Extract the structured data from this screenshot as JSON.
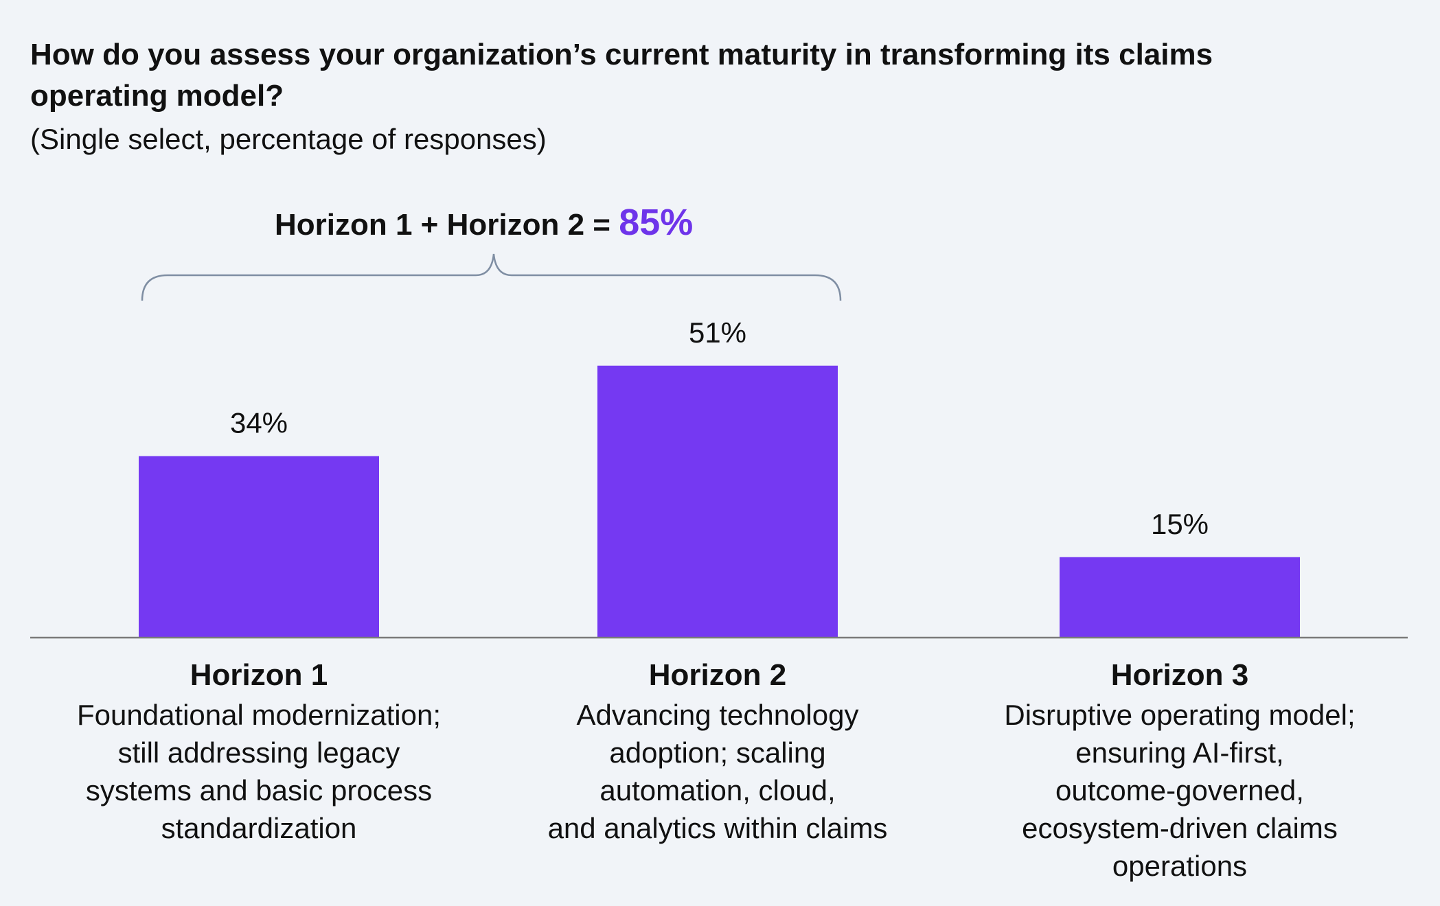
{
  "header": {
    "title": "How do you assess your organization’s current maturity in transforming its claims operating model?",
    "subtitle": "(Single select, percentage of responses)"
  },
  "summary": {
    "label": "Horizon 1 + Horizon 2 =",
    "value": "85%"
  },
  "categories": [
    {
      "title": "Horizon 1",
      "desc_lines": [
        "Foundational modernization;",
        "still addressing legacy",
        "systems and basic process",
        "standardization"
      ]
    },
    {
      "title": "Horizon 2",
      "desc_lines": [
        "Advancing technology",
        "adoption; scaling",
        "automation, cloud,",
        "and analytics within claims"
      ]
    },
    {
      "title": "Horizon 3",
      "desc_lines": [
        "Disruptive operating model;",
        "ensuring AI-first,",
        "outcome-governed,",
        "ecosystem-driven claims",
        "operations"
      ]
    }
  ],
  "colors": {
    "bar": "#7539f2",
    "accent": "#6e34ea",
    "axis": "#7a7a7a",
    "brace": "#7f8ea3",
    "background": "#f1f4f8"
  },
  "chart_data": {
    "type": "bar",
    "categories": [
      "Horizon 1",
      "Horizon 2",
      "Horizon 3"
    ],
    "values": [
      34,
      51,
      15
    ],
    "data_labels": [
      "34%",
      "51%",
      "15%"
    ],
    "unit": "%",
    "title": "How do you assess your organization’s current maturity in transforming its claims operating model?",
    "subtitle": "(Single select, percentage of responses)",
    "ylim": [
      0,
      100
    ],
    "grid": false,
    "legend": "none",
    "annotations": [
      {
        "text": "Horizon 1 + Horizon 2 = 85%",
        "spans": [
          "Horizon 1",
          "Horizon 2"
        ]
      }
    ]
  }
}
